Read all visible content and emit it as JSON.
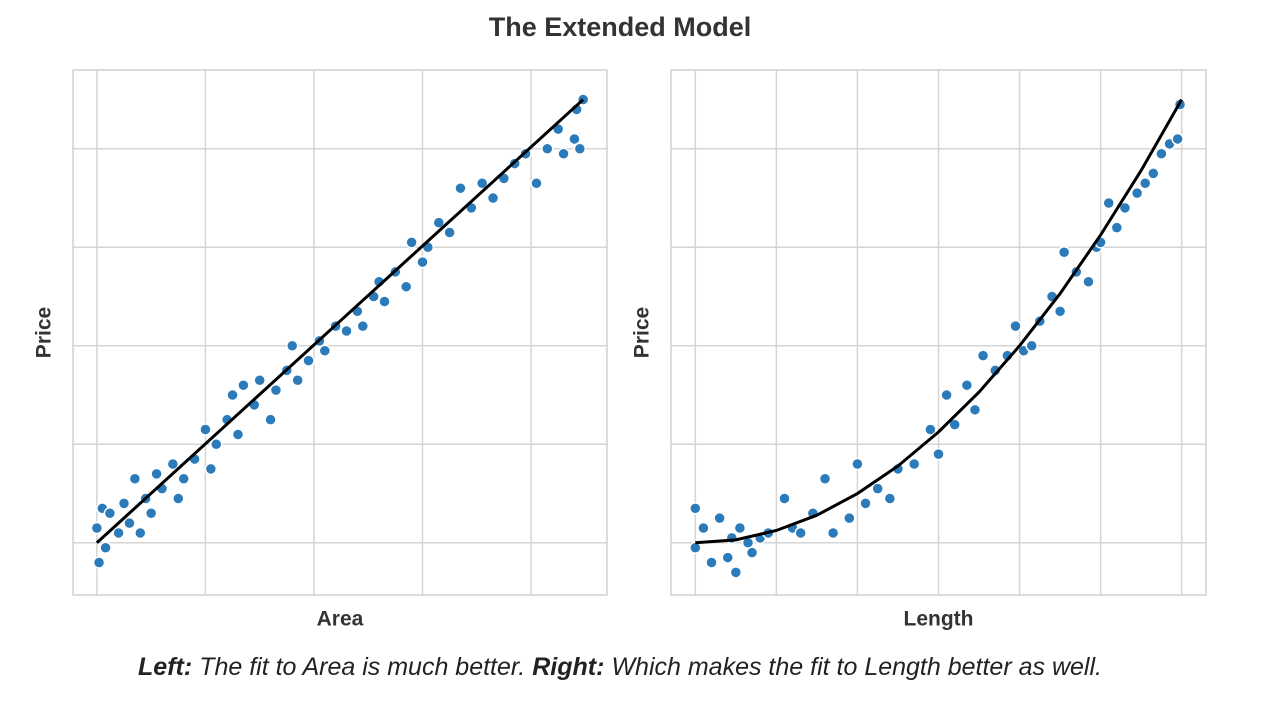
{
  "title": "The Extended Model",
  "chart_data": [
    {
      "type": "scatter",
      "xlabel": "Area",
      "ylabel": "Price",
      "grid": true,
      "tick_labels": false,
      "xlim": [
        -0.22,
        4.7
      ],
      "ylim": [
        -0.53,
        4.8
      ],
      "xticks": [
        0,
        1,
        2,
        3,
        4
      ],
      "yticks": [
        0,
        1,
        2,
        3,
        4
      ],
      "series": [
        {
          "type": "scatter",
          "color": "#2b7bba",
          "x": [
            0,
            0.02,
            0.05,
            0.08,
            0.12,
            0.2,
            0.25,
            0.3,
            0.35,
            0.4,
            0.45,
            0.5,
            0.55,
            0.6,
            0.7,
            0.75,
            0.8,
            0.9,
            1.0,
            1.05,
            1.1,
            1.2,
            1.25,
            1.3,
            1.35,
            1.45,
            1.5,
            1.6,
            1.65,
            1.75,
            1.8,
            1.85,
            1.95,
            2.05,
            2.1,
            2.2,
            2.3,
            2.4,
            2.45,
            2.55,
            2.6,
            2.65,
            2.75,
            2.85,
            2.9,
            3.0,
            3.05,
            3.15,
            3.25,
            3.35,
            3.45,
            3.55,
            3.65,
            3.75,
            3.85,
            3.95,
            4.05,
            4.15,
            4.25,
            4.3,
            4.4,
            4.42,
            4.45,
            4.48
          ],
          "values": [
            0.15,
            -0.2,
            0.35,
            -0.05,
            0.3,
            0.1,
            0.4,
            0.2,
            0.65,
            0.1,
            0.45,
            0.3,
            0.7,
            0.55,
            0.8,
            0.45,
            0.65,
            0.85,
            1.15,
            0.75,
            1.0,
            1.25,
            1.5,
            1.1,
            1.6,
            1.4,
            1.65,
            1.25,
            1.55,
            1.75,
            2.0,
            1.65,
            1.85,
            2.05,
            1.95,
            2.2,
            2.15,
            2.35,
            2.2,
            2.5,
            2.65,
            2.45,
            2.75,
            2.6,
            3.05,
            2.85,
            3.0,
            3.25,
            3.15,
            3.6,
            3.4,
            3.65,
            3.5,
            3.7,
            3.85,
            3.95,
            3.65,
            4.0,
            4.2,
            3.95,
            4.1,
            4.4,
            4.0,
            4.5
          ]
        },
        {
          "type": "line",
          "color": "#000000",
          "x": [
            0,
            4.48
          ],
          "values": [
            0,
            4.5
          ]
        }
      ]
    },
    {
      "type": "scatter",
      "xlabel": "Length",
      "ylabel": "Price",
      "grid": true,
      "tick_labels": false,
      "xlim": [
        -0.3,
        6.3
      ],
      "ylim": [
        -0.53,
        4.8
      ],
      "xticks": [
        0,
        1,
        2,
        3,
        4,
        5,
        6
      ],
      "yticks": [
        0,
        1,
        2,
        3,
        4
      ],
      "series": [
        {
          "type": "scatter",
          "color": "#2b7bba",
          "x": [
            0,
            0,
            0.1,
            0.2,
            0.3,
            0.4,
            0.45,
            0.5,
            0.55,
            0.65,
            0.7,
            0.8,
            0.9,
            1.1,
            1.2,
            1.3,
            1.45,
            1.6,
            1.7,
            1.9,
            2.0,
            2.1,
            2.25,
            2.4,
            2.5,
            2.7,
            2.9,
            3.0,
            3.1,
            3.2,
            3.35,
            3.45,
            3.55,
            3.7,
            3.85,
            3.95,
            4.05,
            4.15,
            4.25,
            4.4,
            4.5,
            4.55,
            4.7,
            4.85,
            4.95,
            5.0,
            5.1,
            5.2,
            5.3,
            5.45,
            5.55,
            5.65,
            5.75,
            5.85,
            5.95,
            5.98
          ],
          "values": [
            0.35,
            -0.05,
            0.15,
            -0.2,
            0.25,
            -0.15,
            0.05,
            -0.3,
            0.15,
            0.0,
            -0.1,
            0.05,
            0.1,
            0.45,
            0.15,
            0.1,
            0.3,
            0.65,
            0.1,
            0.25,
            0.8,
            0.4,
            0.55,
            0.45,
            0.75,
            0.8,
            1.15,
            0.9,
            1.5,
            1.2,
            1.6,
            1.35,
            1.9,
            1.75,
            1.9,
            2.2,
            1.95,
            2.0,
            2.25,
            2.5,
            2.35,
            2.95,
            2.75,
            2.65,
            3.0,
            3.05,
            3.45,
            3.2,
            3.4,
            3.55,
            3.65,
            3.75,
            3.95,
            4.05,
            4.1,
            4.45
          ]
        },
        {
          "type": "line",
          "color": "#000000",
          "x": [
            0,
            0.5,
            1,
            1.5,
            2,
            2.5,
            3,
            3.5,
            4,
            4.5,
            5,
            5.5,
            6
          ],
          "values": [
            0,
            0.03,
            0.125,
            0.28,
            0.5,
            0.78,
            1.125,
            1.53,
            2.0,
            2.53,
            3.125,
            3.78,
            4.5
          ]
        }
      ]
    }
  ],
  "caption": {
    "left_label": "Left:",
    "left_text": "The fit to Area is much better.",
    "right_label": "Right:",
    "right_text": "Which makes the fit to Length better as well."
  }
}
